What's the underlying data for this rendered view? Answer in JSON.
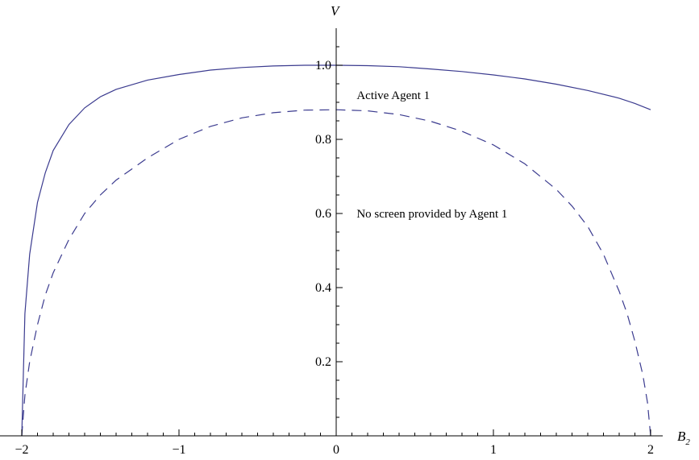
{
  "chart_data": {
    "type": "line",
    "xlabel": "B",
    "xlabel_sub": "2",
    "ylabel": "V",
    "xlim": [
      -2,
      2
    ],
    "ylim": [
      0,
      1.1
    ],
    "x_ticks": [
      -2,
      -1,
      0,
      1,
      2
    ],
    "x_tick_labels": [
      "−2",
      "−1",
      "0",
      "1",
      "2"
    ],
    "y_ticks": [
      0.2,
      0.4,
      0.6,
      0.8,
      1.0
    ],
    "y_tick_labels": [
      "0.2",
      "0.4",
      "0.6",
      "0.8",
      "1.0"
    ],
    "grid": false,
    "colors": {
      "series": "#3b3b8f",
      "axes": "#000000"
    },
    "series": [
      {
        "label": "Active Agent 1",
        "style": "solid",
        "x": [
          -2.0,
          -1.98,
          -1.95,
          -1.9,
          -1.85,
          -1.8,
          -1.7,
          -1.6,
          -1.5,
          -1.4,
          -1.2,
          -1.0,
          -0.8,
          -0.6,
          -0.4,
          -0.2,
          0.0,
          0.2,
          0.4,
          0.6,
          0.8,
          1.0,
          1.2,
          1.4,
          1.6,
          1.8,
          1.9,
          2.0
        ],
        "values": [
          0.0,
          0.33,
          0.49,
          0.63,
          0.71,
          0.77,
          0.84,
          0.885,
          0.915,
          0.935,
          0.96,
          0.975,
          0.987,
          0.994,
          0.998,
          1.0,
          1.0,
          0.999,
          0.996,
          0.99,
          0.983,
          0.974,
          0.963,
          0.949,
          0.932,
          0.911,
          0.897,
          0.88
        ]
      },
      {
        "label": "No screen provided by Agent 1",
        "style": "dashed",
        "x": [
          -2.0,
          -1.98,
          -1.95,
          -1.9,
          -1.85,
          -1.8,
          -1.7,
          -1.6,
          -1.5,
          -1.4,
          -1.2,
          -1.0,
          -0.8,
          -0.6,
          -0.4,
          -0.2,
          0.0,
          0.2,
          0.4,
          0.6,
          0.8,
          1.0,
          1.2,
          1.4,
          1.5,
          1.6,
          1.7,
          1.8,
          1.85,
          1.9,
          1.95,
          1.98,
          2.0
        ],
        "values": [
          0.0,
          0.11,
          0.2,
          0.3,
          0.38,
          0.44,
          0.53,
          0.6,
          0.65,
          0.69,
          0.75,
          0.8,
          0.835,
          0.858,
          0.872,
          0.879,
          0.88,
          0.877,
          0.867,
          0.849,
          0.822,
          0.785,
          0.734,
          0.665,
          0.62,
          0.565,
          0.49,
          0.39,
          0.33,
          0.255,
          0.165,
          0.09,
          0.0
        ]
      }
    ]
  }
}
